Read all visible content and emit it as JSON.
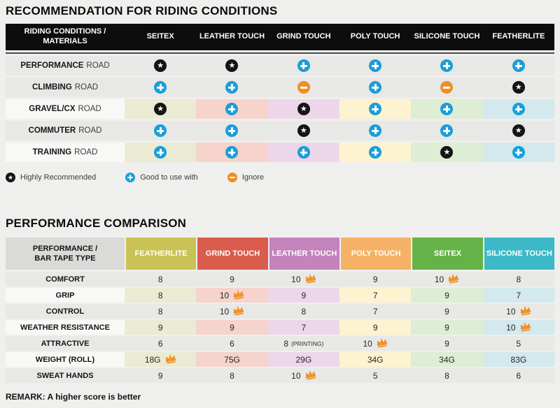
{
  "colors": {
    "page_bg": "#efefed",
    "table1_header_bg": "#0d0d0d",
    "row_gray": "#e8e8e6",
    "row_label_light": "#f8f8f6",
    "icon_star": "#141414",
    "icon_plus": "#1a9ed9",
    "icon_minus": "#ee8f2a",
    "crown": "#f0922b",
    "column_tints": [
      "#ebebd3",
      "#f6d3cb",
      "#eed6ea",
      "#fdf3d1",
      "#deeed5",
      "#d3e9ee"
    ],
    "table2_header_colors": [
      "#c9c255",
      "#da5c4d",
      "#c383bd",
      "#f5b266",
      "#65b348",
      "#3cb8c6"
    ]
  },
  "section1": {
    "title": "RECOMMENDATION FOR RIDING CONDITIONS",
    "table": {
      "label_header": "RIDING CONDITIONS /\nMATERIALS",
      "columns": [
        "SEITEX",
        "LEATHER TOUCH",
        "GRIND TOUCH",
        "POLY TOUCH",
        "SILICONE TOUCH",
        "FEATHERLITE"
      ],
      "rows": [
        {
          "label_bold": "PERFORMANCE",
          "label_rest": "ROAD",
          "tinted": false,
          "cells": [
            "star",
            "star",
            "plus",
            "plus",
            "plus",
            "plus"
          ]
        },
        {
          "label_bold": "CLIMBING",
          "label_rest": "ROAD",
          "tinted": false,
          "cells": [
            "plus",
            "plus",
            "minus",
            "plus",
            "minus",
            "star"
          ]
        },
        {
          "label_bold": "GRAVEL/CX",
          "label_rest": "ROAD",
          "tinted": true,
          "cells": [
            "star",
            "plus",
            "star",
            "plus",
            "plus",
            "plus"
          ]
        },
        {
          "label_bold": "COMMUTER",
          "label_rest": "ROAD",
          "tinted": false,
          "cells": [
            "plus",
            "plus",
            "star",
            "plus",
            "plus",
            "star"
          ]
        },
        {
          "label_bold": "TRAINING",
          "label_rest": "ROAD",
          "tinted": true,
          "cells": [
            "plus",
            "plus",
            "plus",
            "plus",
            "star",
            "plus"
          ]
        }
      ]
    },
    "legend": [
      {
        "icon": "star",
        "label": "Highly Recommended"
      },
      {
        "icon": "plus",
        "label": "Good to use with"
      },
      {
        "icon": "minus",
        "label": "Ignore"
      }
    ]
  },
  "section2": {
    "title": "PERFORMANCE COMPARISON",
    "table": {
      "label_header": "PERFORMANCE /\nBAR TAPE TYPE",
      "columns": [
        "FEATHERLITE",
        "GRIND TOUCH",
        "LEATHER TOUCH",
        "POLY TOUCH",
        "SEITEX",
        "SILICONE TOUCH"
      ],
      "rows": [
        {
          "label": "COMFORT",
          "tinted": false,
          "cells": [
            {
              "value": "8"
            },
            {
              "value": "9"
            },
            {
              "value": "10",
              "crown": true
            },
            {
              "value": "9"
            },
            {
              "value": "10",
              "crown": true
            },
            {
              "value": "8"
            }
          ]
        },
        {
          "label": "GRIP",
          "tinted": true,
          "cells": [
            {
              "value": "8"
            },
            {
              "value": "10",
              "crown": true
            },
            {
              "value": "9"
            },
            {
              "value": "7"
            },
            {
              "value": "9"
            },
            {
              "value": "7"
            }
          ]
        },
        {
          "label": "CONTROL",
          "tinted": false,
          "cells": [
            {
              "value": "8"
            },
            {
              "value": "10",
              "crown": true
            },
            {
              "value": "8"
            },
            {
              "value": "7"
            },
            {
              "value": "9"
            },
            {
              "value": "10",
              "crown": true
            }
          ]
        },
        {
          "label": "WEATHER RESISTANCE",
          "tinted": true,
          "cells": [
            {
              "value": "9"
            },
            {
              "value": "9"
            },
            {
              "value": "7"
            },
            {
              "value": "9"
            },
            {
              "value": "9"
            },
            {
              "value": "10",
              "crown": true
            }
          ]
        },
        {
          "label": "ATTRACTIVE",
          "tinted": false,
          "cells": [
            {
              "value": "6"
            },
            {
              "value": "6"
            },
            {
              "value": "8",
              "suffix": "(PRINTING)"
            },
            {
              "value": "10",
              "crown": true
            },
            {
              "value": "9"
            },
            {
              "value": "5"
            }
          ]
        },
        {
          "label": "WEIGHT (ROLL)",
          "tinted": true,
          "cells": [
            {
              "value": "18G",
              "crown": true
            },
            {
              "value": "75G"
            },
            {
              "value": "29G"
            },
            {
              "value": "34G"
            },
            {
              "value": "34G"
            },
            {
              "value": "83G"
            }
          ]
        },
        {
          "label": "SWEAT HANDS",
          "tinted": false,
          "cells": [
            {
              "value": "9"
            },
            {
              "value": "8"
            },
            {
              "value": "10",
              "crown": true
            },
            {
              "value": "5"
            },
            {
              "value": "8"
            },
            {
              "value": "6"
            }
          ]
        }
      ]
    }
  },
  "remark": "REMARK: A higher score is better"
}
